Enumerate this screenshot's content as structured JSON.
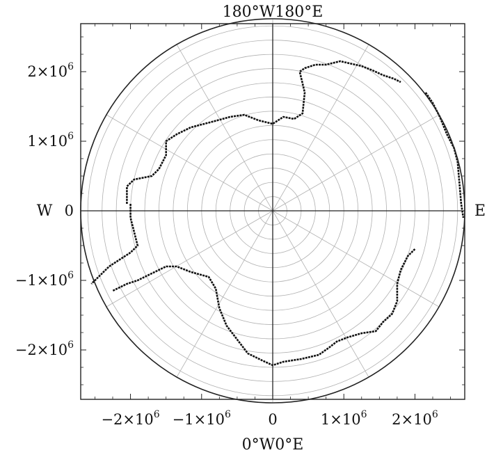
{
  "chart_data": {
    "type": "map",
    "projection": "polar-stereographic-south",
    "title": "180°W180°E",
    "bottom_label": "0°W0°E",
    "left_label": "W",
    "right_label": "E",
    "xlim": [
      -2700000,
      2700000
    ],
    "ylim": [
      -2700000,
      2700000
    ],
    "map_radius": 2700000,
    "x_ticks": [
      {
        "value": -2000000,
        "base": "−2×10",
        "exp": "6"
      },
      {
        "value": -1000000,
        "base": "−1×10",
        "exp": "6"
      },
      {
        "value": 0,
        "base": "0",
        "exp": ""
      },
      {
        "value": 1000000,
        "base": "1×10",
        "exp": "6"
      },
      {
        "value": 2000000,
        "base": "2×10",
        "exp": "6"
      }
    ],
    "y_ticks": [
      {
        "value": 2000000,
        "base": "2×10",
        "exp": "6"
      },
      {
        "value": 1000000,
        "base": "1×10",
        "exp": "6"
      },
      {
        "value": 0,
        "base": "0",
        "exp": ""
      },
      {
        "value": -1000000,
        "base": "−1×10",
        "exp": "6"
      },
      {
        "value": -2000000,
        "base": "−2×10",
        "exp": "6"
      }
    ],
    "grid": {
      "circle_spacing": 200000,
      "circle_count": 13,
      "meridian_step_deg": 30,
      "show_axes_cross": true
    },
    "colors": {
      "coast": "#111111",
      "grid": "#b0b0b0",
      "frame": "#222222"
    },
    "coastline": [
      [
        -2050000.0,
        100000.0
      ],
      [
        -2050000.0,
        350000.0
      ],
      [
        -1950000.0,
        450000.0
      ],
      [
        -1700000.0,
        500000.0
      ],
      [
        -1600000.0,
        600000.0
      ],
      [
        -1500000.0,
        800000.0
      ],
      [
        -1500000.0,
        1000000.0
      ],
      [
        -1350000.0,
        1100000.0
      ],
      [
        -1150000.0,
        1200000.0
      ],
      [
        -850000.0,
        1280000.0
      ],
      [
        -600000.0,
        1350000.0
      ],
      [
        -400000.0,
        1380000.0
      ],
      [
        -200000.0,
        1300000.0
      ],
      [
        0.0,
        1250000.0
      ],
      [
        150000.0,
        1350000.0
      ],
      [
        300000.0,
        1320000.0
      ],
      [
        420000.0,
        1400000.0
      ],
      [
        450000.0,
        1700000.0
      ],
      [
        380000.0,
        2000000.0
      ],
      [
        450000.0,
        2050000.0
      ],
      [
        600000.0,
        2100000.0
      ],
      [
        750000.0,
        2100000.0
      ],
      [
        950000.0,
        2150000.0
      ],
      [
        1250000.0,
        2080000.0
      ],
      [
        1400000.0,
        2020000.0
      ],
      [
        1550000.0,
        1950000.0
      ],
      [
        1700000.0,
        1900000.0
      ],
      [
        1800000.0,
        1850000.0
      ]
    ],
    "coastline_east": [
      [
        2150000.0,
        1700000.0
      ],
      [
        2250000.0,
        1550000.0
      ],
      [
        2350000.0,
        1350000.0
      ],
      [
        2450000.0,
        1100000.0
      ],
      [
        2550000.0,
        900000.0
      ],
      [
        2600000.0,
        700000.0
      ],
      [
        2650000.0,
        100000.0
      ],
      [
        2680000.0,
        -100000.0
      ]
    ],
    "coastline_south": [
      [
        2000000.0,
        -550000.0
      ],
      [
        1900000.0,
        -650000.0
      ],
      [
        1800000.0,
        -850000.0
      ],
      [
        1750000.0,
        -1050000.0
      ],
      [
        1750000.0,
        -1300000.0
      ],
      [
        1680000.0,
        -1480000.0
      ],
      [
        1550000.0,
        -1600000.0
      ],
      [
        1450000.0,
        -1730000.0
      ],
      [
        1250000.0,
        -1760000.0
      ],
      [
        1050000.0,
        -1820000.0
      ],
      [
        900000.0,
        -1880000.0
      ],
      [
        800000.0,
        -1960000.0
      ],
      [
        650000.0,
        -2070000.0
      ],
      [
        400000.0,
        -2130000.0
      ],
      [
        150000.0,
        -2170000.0
      ],
      [
        0.0,
        -2220000.0
      ],
      [
        -150000.0,
        -2150000.0
      ],
      [
        -350000.0,
        -2050000.0
      ],
      [
        -500000.0,
        -1850000.0
      ],
      [
        -650000.0,
        -1650000.0
      ],
      [
        -750000.0,
        -1400000.0
      ],
      [
        -800000.0,
        -1120000.0
      ],
      [
        -900000.0,
        -950000.0
      ],
      [
        -1150000.0,
        -880000.0
      ],
      [
        -1350000.0,
        -800000.0
      ],
      [
        -1500000.0,
        -800000.0
      ],
      [
        -1700000.0,
        -900000.0
      ],
      [
        -1900000.0,
        -1000000.0
      ],
      [
        -2050000.0,
        -1050000.0
      ],
      [
        -2250000.0,
        -1150000.0
      ]
    ],
    "coastline_west": [
      [
        -2000000.0,
        100000.0
      ],
      [
        -2000000.0,
        -100000.0
      ],
      [
        -1950000.0,
        -300000.0
      ],
      [
        -1900000.0,
        -500000.0
      ],
      [
        -2000000.0,
        -600000.0
      ],
      [
        -2150000.0,
        -700000.0
      ],
      [
        -2300000.0,
        -800000.0
      ],
      [
        -2450000.0,
        -950000.0
      ],
      [
        -2550000.0,
        -1050000.0
      ]
    ]
  }
}
